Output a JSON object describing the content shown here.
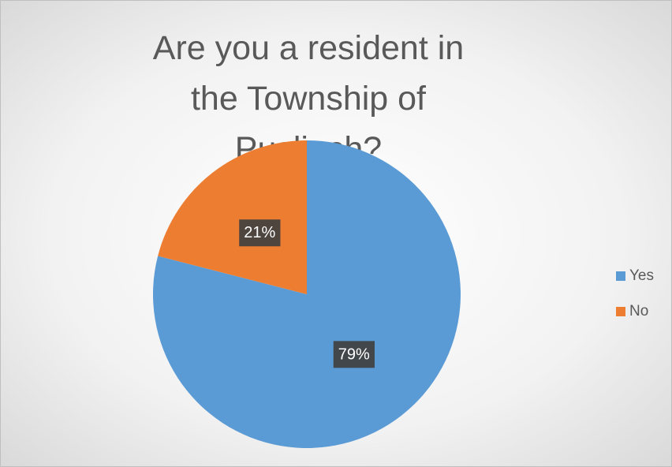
{
  "chart_data": {
    "type": "pie",
    "title": "Are you a resident in the Township of Puslinch?",
    "categories": [
      "Yes",
      "No"
    ],
    "values": [
      79,
      21
    ],
    "value_labels": [
      "79%",
      "21%"
    ],
    "colors": [
      "#5b9bd5",
      "#ed7d31"
    ],
    "legend": "right"
  }
}
